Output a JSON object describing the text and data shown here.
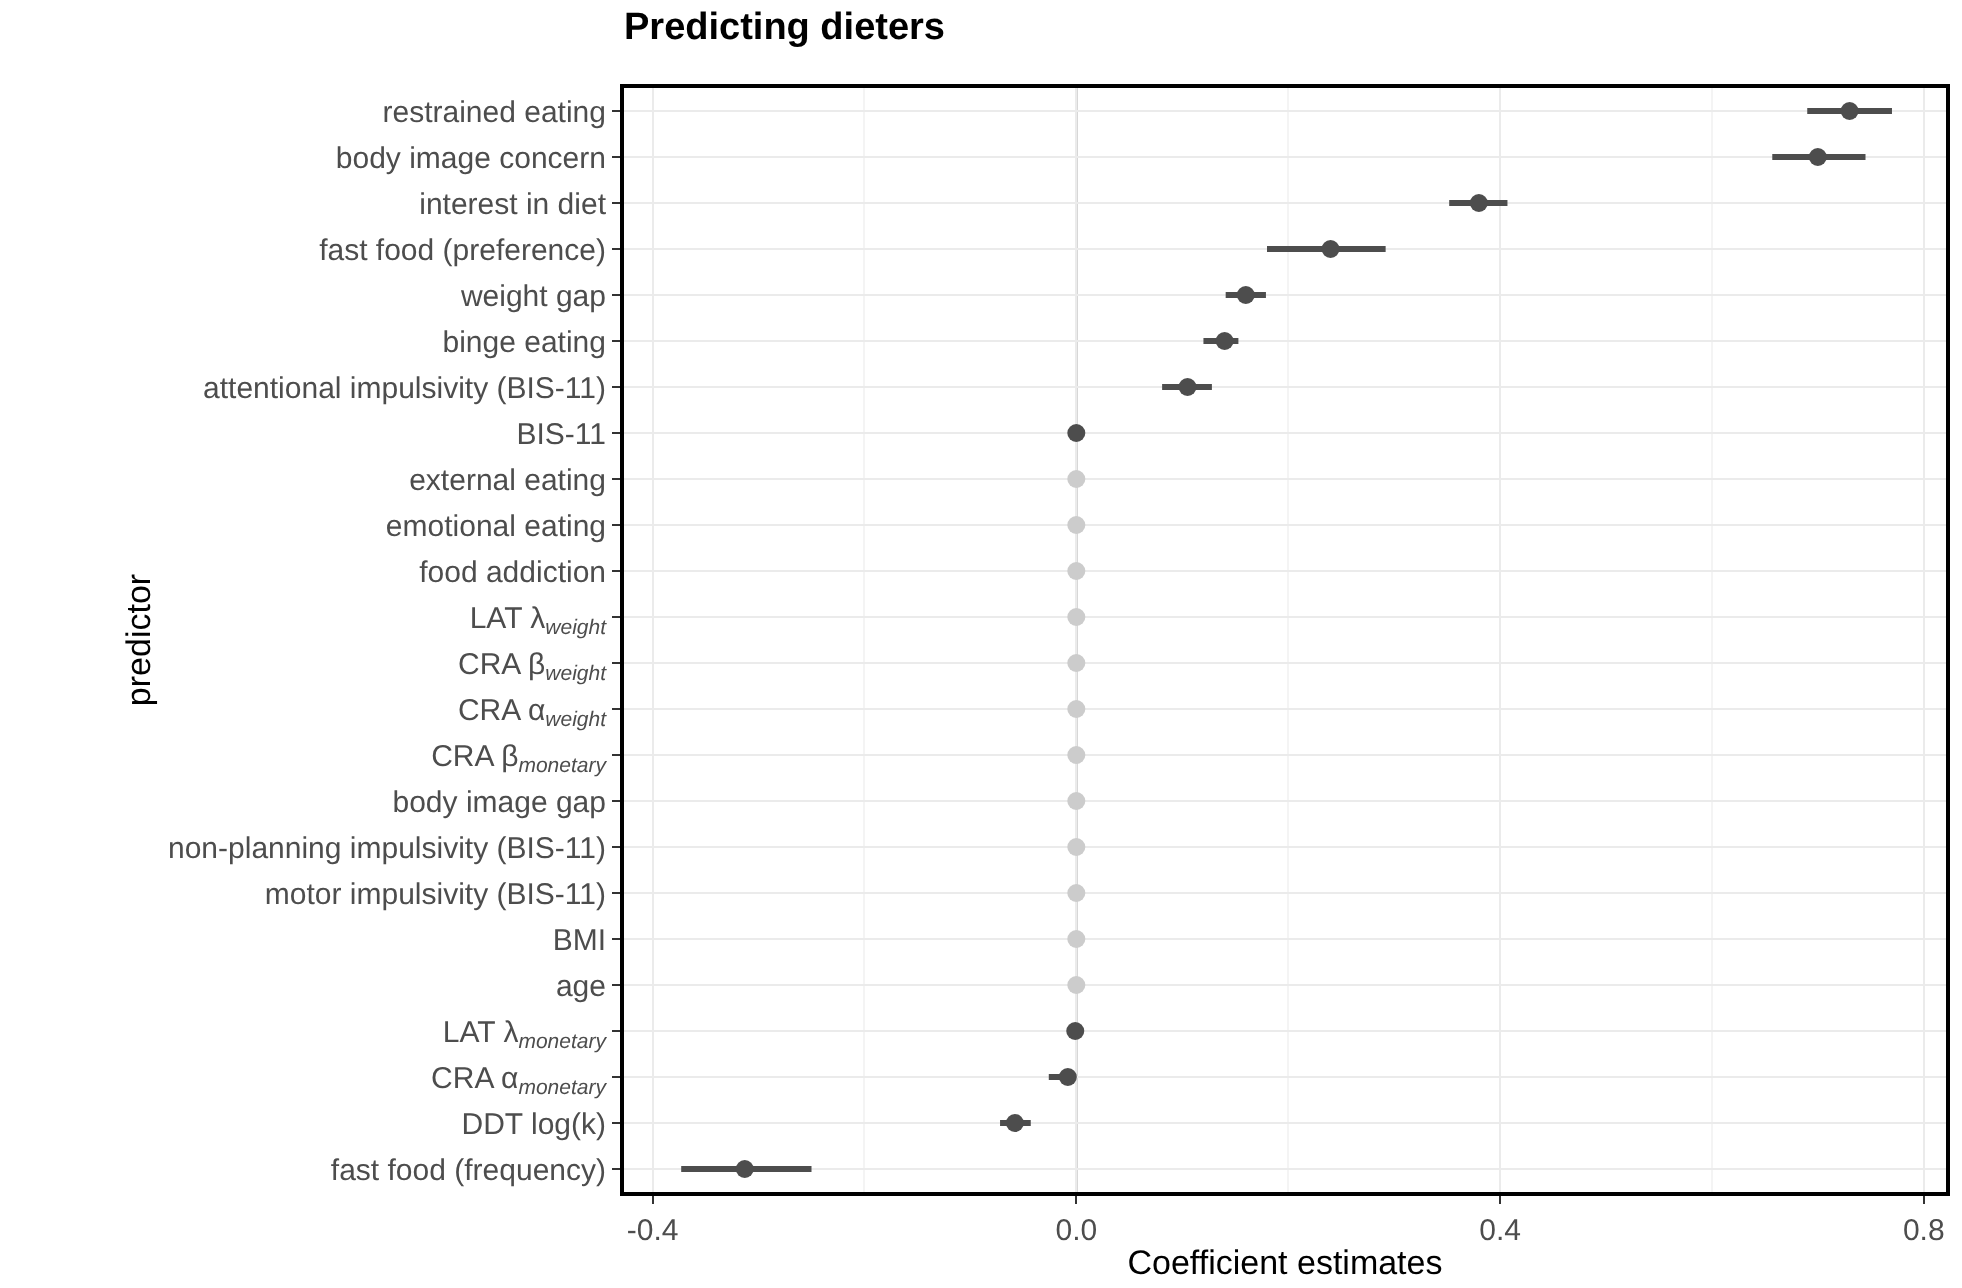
{
  "chart_data": {
    "type": "scatter",
    "title": "Predicting dieters",
    "xlabel": "Coefficient estimates",
    "ylabel": "predictor",
    "categories": [
      "restrained eating",
      "body image concern",
      "interest in diet",
      "fast food (preference)",
      "weight gap",
      "binge eating",
      "attentional impulsivity (BIS-11)",
      "BIS-11",
      "external eating",
      "emotional eating",
      "food addiction",
      "LAT λ$_{weight}$",
      "CRA β$_{weight}$",
      "CRA α$_{weight}$",
      "CRA β$_{monetary}$",
      "body image gap",
      "non-planning impulsivity (BIS-11)",
      "motor impulsivity (BIS-11)",
      "BMI",
      "age",
      "LAT λ$_{monetary}$",
      "CRA α$_{monetary}$",
      "DDT log(k)",
      "fast food (frequency)"
    ],
    "values": [
      0.73,
      0.7,
      0.38,
      0.24,
      0.16,
      0.14,
      0.105,
      0.0,
      0.0,
      0.0,
      0.0,
      0.0,
      0.0,
      0.0,
      0.0,
      0.0,
      0.0,
      0.0,
      0.0,
      0.0,
      -0.001,
      -0.008,
      -0.058,
      -0.313
    ],
    "errors": [
      [
        0.69,
        0.77
      ],
      [
        0.657,
        0.745
      ],
      [
        0.352,
        0.407
      ],
      [
        0.18,
        0.292
      ],
      [
        0.141,
        0.179
      ],
      [
        0.12,
        0.153
      ],
      [
        0.081,
        0.128
      ],
      null,
      null,
      null,
      null,
      null,
      null,
      null,
      null,
      null,
      null,
      null,
      null,
      null,
      null,
      [
        -0.026,
        -0.002
      ],
      [
        -0.072,
        -0.043
      ],
      [
        -0.373,
        -0.25
      ]
    ],
    "colors": [
      "#4d4d4d",
      "#4d4d4d",
      "#4d4d4d",
      "#4d4d4d",
      "#4d4d4d",
      "#4d4d4d",
      "#4d4d4d",
      "#4d4d4d",
      "#cccccc",
      "#cccccc",
      "#cccccc",
      "#cccccc",
      "#cccccc",
      "#cccccc",
      "#cccccc",
      "#cccccc",
      "#cccccc",
      "#cccccc",
      "#cccccc",
      "#cccccc",
      "#4d4d4d",
      "#4d4d4d",
      "#4d4d4d",
      "#4d4d4d"
    ],
    "orientation": "horizontal",
    "xlim": [
      -0.427,
      0.821
    ],
    "xticks": [
      {
        "value": -0.4,
        "label": "-0.4"
      },
      {
        "value": 0,
        "label": "0.0"
      },
      {
        "value": 0.4,
        "label": "0.4"
      },
      {
        "value": 0.8,
        "label": "0.8"
      }
    ],
    "ref_lines": [
      {
        "axis": "x",
        "value": 0,
        "color": "#808080"
      }
    ],
    "grid": true,
    "marker": "circle"
  }
}
